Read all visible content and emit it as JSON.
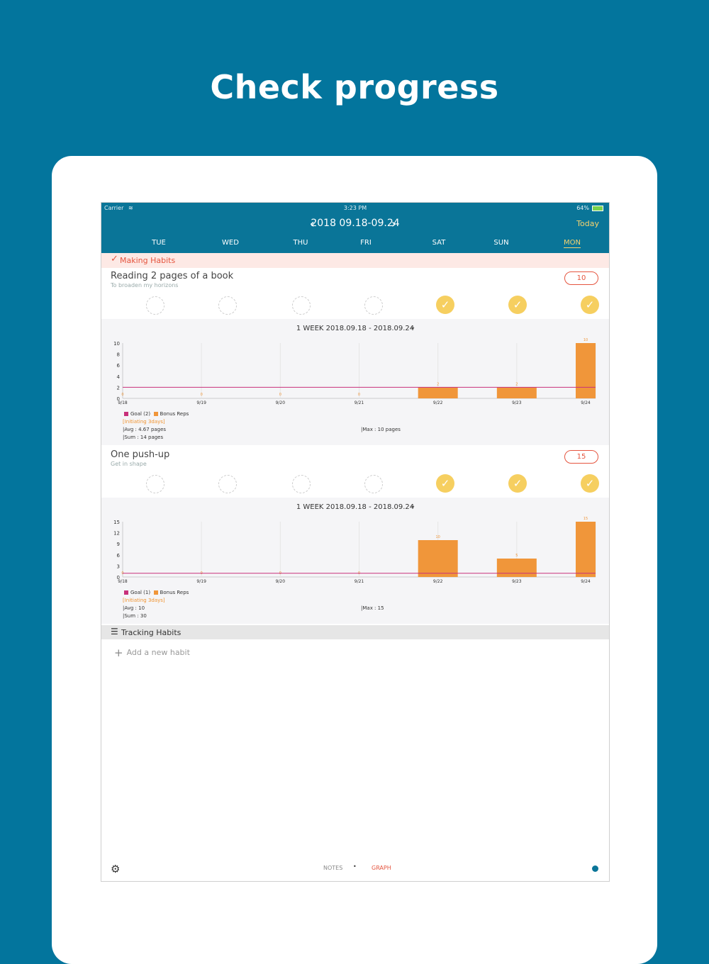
{
  "headline": "Check progress",
  "status_bar": {
    "carrier": "Carrier",
    "time": "3:23 PM",
    "battery": "64%"
  },
  "nav": {
    "week_range": "2018 09.18-09.24",
    "today": "Today",
    "prev_icon": "chevron-left-icon",
    "next_icon": "chevron-right-icon"
  },
  "days": [
    "TUE",
    "WED",
    "THU",
    "FRI",
    "SAT",
    "SUN",
    "MON"
  ],
  "making_section": {
    "label": "Making Habits"
  },
  "habits": [
    {
      "title": "Reading 2 pages of a book",
      "subtitle": "To broaden my horizons",
      "count": "10",
      "checks": [
        false,
        false,
        false,
        false,
        true,
        true,
        true
      ],
      "graph": {
        "title": "1 WEEK 2018.09.18 - 2018.09.24",
        "legend_goal": "Goal (2)",
        "legend_bonus": "Bonus Reps",
        "initiating": "[Initiating 3days]",
        "avg": "|Avg : 4.67 pages",
        "sum": "|Sum : 14 pages",
        "max": "|Max : 10 pages"
      }
    },
    {
      "title": "One push-up",
      "subtitle": "Get in shape",
      "count": "15",
      "checks": [
        false,
        false,
        false,
        false,
        true,
        true,
        true
      ],
      "graph": {
        "title": "1 WEEK 2018.09.18 - 2018.09.24",
        "legend_goal": "Goal (1)",
        "legend_bonus": "Bonus Reps",
        "initiating": "[Initiating 3days]",
        "avg": "|Avg : 10",
        "sum": "|Sum : 30",
        "max": "|Max : 15"
      }
    }
  ],
  "tracking_section": {
    "label": "Tracking Habits"
  },
  "add_habit": "Add a new habit",
  "bottom_bar": {
    "notes": "NOTES",
    "graph": "GRAPH",
    "settings_icon": "gear-icon"
  },
  "colors": {
    "brand": "#03759d",
    "accent": "#e5553f",
    "bar": "#f0963a",
    "goal_line": "#c8307a",
    "check": "#f6cf60"
  },
  "chart_data": [
    {
      "type": "bar",
      "categories": [
        "9/18",
        "9/19",
        "9/20",
        "9/21",
        "9/22",
        "9/23",
        "9/24"
      ],
      "values": [
        0,
        0,
        0,
        0,
        2,
        2,
        10
      ],
      "y_ticks": [
        "0",
        "2",
        "4",
        "6",
        "8",
        "10"
      ],
      "ylim": [
        0,
        10
      ],
      "goal": 2,
      "series": [
        {
          "name": "Bonus Reps",
          "values": [
            0,
            0,
            0,
            0,
            2,
            2,
            10
          ]
        }
      ]
    },
    {
      "type": "bar",
      "categories": [
        "9/18",
        "9/19",
        "9/20",
        "9/21",
        "9/22",
        "9/23",
        "9/24"
      ],
      "values": [
        0,
        0,
        0,
        0,
        10,
        5,
        15
      ],
      "y_ticks": [
        "0",
        "3",
        "6",
        "9",
        "12",
        "15"
      ],
      "ylim": [
        0,
        15
      ],
      "goal": 1,
      "series": [
        {
          "name": "Bonus Reps",
          "values": [
            0,
            0,
            0,
            0,
            10,
            5,
            15
          ]
        }
      ]
    }
  ]
}
